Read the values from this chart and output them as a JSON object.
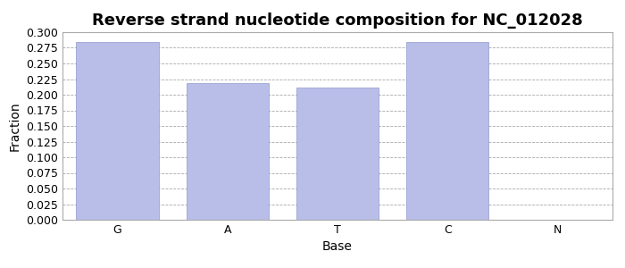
{
  "title": "Reverse strand nucleotide composition for NC_012028",
  "categories": [
    "G",
    "A",
    "T",
    "C",
    "N"
  ],
  "values": [
    0.285,
    0.218,
    0.212,
    0.285,
    0.0001
  ],
  "bar_color": "#b8bee8",
  "bar_edgecolor": "#9099cc",
  "xlabel": "Base",
  "ylabel": "Fraction",
  "ylim": [
    0.0,
    0.3
  ],
  "yticks": [
    0.0,
    0.025,
    0.05,
    0.075,
    0.1,
    0.125,
    0.15,
    0.175,
    0.2,
    0.225,
    0.25,
    0.275,
    0.3
  ],
  "title_fontsize": 13,
  "axis_fontsize": 10,
  "tick_fontsize": 9,
  "grid_color": "#aaaaaa",
  "background_color": "#ffffff",
  "fig_width": 7.0,
  "fig_height": 3.0,
  "dpi": 100
}
